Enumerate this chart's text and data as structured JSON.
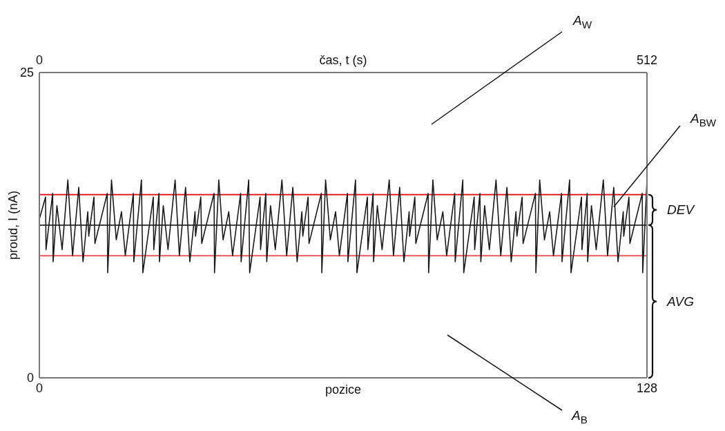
{
  "chart_data": {
    "type": "line",
    "xlabel": "pozice",
    "x2label": "čas, t (s)",
    "ylabel": "proud, I (nA)",
    "annotations": [
      "A$_{W}$",
      {
        "text": "A$_{BW}$",
        "x": 121,
        "y": 14
      },
      "DEV",
      "AVG",
      "A$_{B}$"
    ],
    "xlim": [
      0,
      128
    ],
    "xticks": [
      0,
      128
    ],
    "x2lim": [
      0,
      512
    ],
    "x2ticks": [
      0,
      512
    ],
    "ylim": [
      0,
      25
    ],
    "yticks": [
      0,
      25
    ],
    "marker": "none",
    "color": "#1a1a1a",
    "ref_lines": [
      {
        "axis": "y",
        "value": 15,
        "color": "#e41e26"
      },
      {
        "axis": "y",
        "value": 10,
        "color": "#f0575c"
      },
      {
        "axis": "y",
        "value": 12.5,
        "color": "#444444"
      }
    ],
    "x": [
      0,
      1.3,
      1.4,
      2.8,
      2.9,
      3.7,
      4.8,
      6.0,
      7.0,
      8.3,
      9.2,
      10.2,
      10.4,
      11.5,
      11.7,
      14.3,
      14.4,
      15.2,
      16.2,
      17.3,
      18.1,
      19.8,
      19.9,
      21.5,
      21.8,
      24.0,
      24.1,
      25.2,
      25.3,
      26.1,
      27.1,
      28.6,
      29.5,
      30.8,
      31.7,
      32.8,
      32.9,
      34.0,
      34.2,
      36.8,
      36.9,
      37.8,
      38.7,
      39.9,
      40.7,
      42.4,
      42.5,
      44.1,
      44.3,
      46.5,
      46.6,
      47.7,
      47.9,
      48.7,
      49.7,
      51.1,
      52.1,
      53.4,
      54.3,
      55.3,
      55.5,
      56.6,
      56.8,
      59.4,
      59.5,
      60.3,
      61.3,
      62.4,
      63.2,
      64.9,
      65.0,
      66.6,
      66.9,
      69.1,
      69.2,
      70.3,
      70.4,
      71.2,
      72.2,
      73.7,
      74.6,
      75.9,
      76.8,
      77.9,
      78.0,
      79.1,
      79.3,
      81.9,
      82.0,
      82.9,
      83.8,
      85.0,
      85.8,
      87.5,
      87.6,
      89.2,
      89.4,
      91.6,
      91.7,
      92.8,
      93.0,
      93.8,
      94.8,
      96.2,
      97.2,
      98.5,
      99.4,
      100.4,
      100.6,
      101.7,
      101.9,
      104.5,
      104.6,
      105.4,
      106.4,
      107.5,
      108.3,
      110.0,
      110.1,
      111.7,
      112.0,
      114.2,
      114.3,
      115.4,
      115.5,
      116.3,
      117.3,
      118.8,
      119.7,
      121.0,
      121.9,
      123.0,
      123.1,
      124.2,
      124.4,
      127.0,
      127.1,
      128.0
    ],
    "values": [
      13.0,
      14.8,
      10.5,
      15.1,
      9.5,
      14.1,
      10.5,
      16.2,
      10.0,
      15.6,
      9.5,
      13.6,
      11.6,
      14.8,
      11.0,
      15.1,
      8.6,
      16.2,
      11.3,
      13.6,
      10.0,
      15.1,
      9.5,
      16.2,
      8.6,
      14.8,
      10.5,
      15.1,
      9.5,
      14.1,
      10.5,
      16.2,
      10.0,
      15.6,
      9.5,
      13.6,
      11.6,
      14.8,
      11.0,
      15.1,
      8.6,
      16.2,
      11.3,
      13.6,
      10.0,
      15.1,
      9.5,
      16.2,
      8.6,
      14.8,
      10.5,
      15.1,
      9.5,
      14.1,
      10.5,
      16.2,
      10.0,
      15.6,
      9.5,
      13.6,
      11.6,
      14.8,
      11.0,
      15.1,
      8.6,
      16.2,
      11.3,
      13.6,
      10.0,
      15.1,
      9.5,
      16.2,
      8.6,
      14.8,
      10.5,
      15.1,
      9.5,
      14.1,
      10.5,
      16.2,
      10.0,
      15.6,
      9.5,
      13.6,
      11.6,
      14.8,
      11.0,
      15.1,
      8.6,
      16.2,
      11.3,
      13.6,
      10.0,
      15.1,
      9.5,
      16.2,
      8.6,
      14.8,
      10.5,
      15.1,
      9.5,
      14.1,
      10.5,
      16.2,
      10.0,
      15.6,
      9.5,
      13.6,
      11.6,
      14.8,
      11.0,
      15.1,
      8.6,
      16.2,
      11.3,
      13.6,
      10.0,
      15.1,
      9.5,
      16.2,
      8.6,
      14.8,
      10.5,
      15.1,
      9.5,
      14.1,
      10.5,
      16.2,
      10.0,
      15.6,
      9.5,
      13.6,
      11.6,
      14.8,
      11.0,
      15.1,
      8.6,
      16.2
    ]
  }
}
